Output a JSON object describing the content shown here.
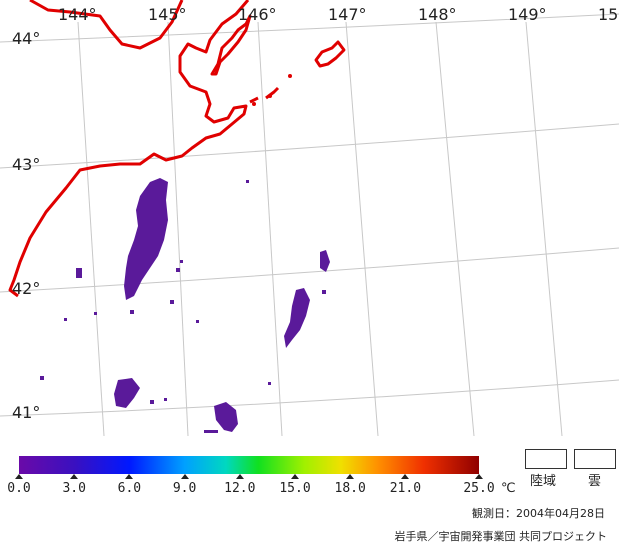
{
  "map": {
    "lon_labels": [
      "144°",
      "145°",
      "146°",
      "147°",
      "148°",
      "149°",
      "15"
    ],
    "lat_labels": [
      "44°",
      "43°",
      "42°",
      "41°"
    ],
    "coast_color": "#e00000",
    "grid_color": "#c8c8c8",
    "data_color": "#5a1a9a"
  },
  "colorbar": {
    "ticks": [
      "0.0",
      "3.0",
      "6.0",
      "9.0",
      "12.0",
      "15.0",
      "18.0",
      "21.0",
      "25.0"
    ],
    "unit": "℃",
    "min": 0.0,
    "max": 25.0
  },
  "legend": {
    "land": "陸域",
    "cloud": "雲"
  },
  "footer": {
    "observation_date": "観測日：2004年04月28日",
    "credit": "岩手県／宇宙開発事業団 共同プロジェクト"
  }
}
